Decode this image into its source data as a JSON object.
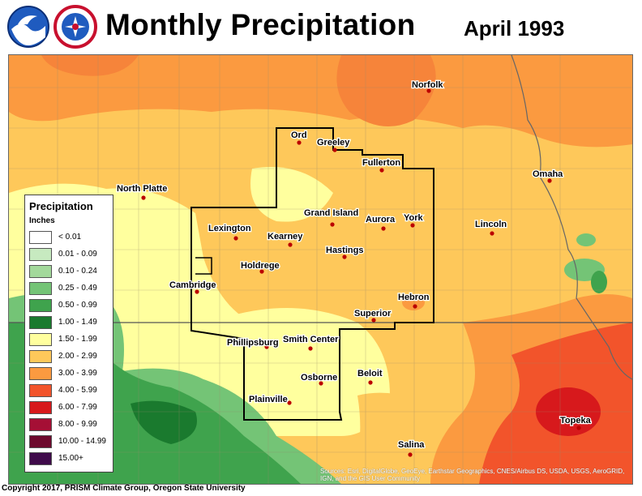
{
  "title": "Monthly Precipitation",
  "period": "April 1993",
  "legend": {
    "title": "Precipitation",
    "units": "Inches",
    "classes": [
      {
        "label": "< 0.01",
        "color": "#ffffff"
      },
      {
        "label": "0.01 - 0.09",
        "color": "#c7eac0"
      },
      {
        "label": "0.10 - 0.24",
        "color": "#a3d99b"
      },
      {
        "label": "0.25 - 0.49",
        "color": "#74c476"
      },
      {
        "label": "0.50 - 0.99",
        "color": "#3fa34d"
      },
      {
        "label": "1.00 - 1.49",
        "color": "#1a7a2e"
      },
      {
        "label": "1.50 - 1.99",
        "color": "#ffff9e"
      },
      {
        "label": "2.00 - 2.99",
        "color": "#fec85a"
      },
      {
        "label": "3.00 - 3.99",
        "color": "#fb9a40"
      },
      {
        "label": "4.00 - 5.99",
        "color": "#f2542b"
      },
      {
        "label": "6.00 - 7.99",
        "color": "#d7191c"
      },
      {
        "label": "8.00 - 9.99",
        "color": "#a50f35"
      },
      {
        "label": "10.00 - 14.99",
        "color": "#6e0a2e"
      },
      {
        "label": "15.00+",
        "color": "#3f0a4a"
      }
    ]
  },
  "cities": [
    "Ord",
    "Greeley",
    "Norfolk",
    "Fullerton",
    "North Platte",
    "Omaha",
    "Grand Island",
    "Aurora",
    "York",
    "Lincoln",
    "Lexington",
    "Kearney",
    "Hastings",
    "Holdrege",
    "Cambridge",
    "Hebron",
    "Superior",
    "Phillipsburg",
    "Smith Center",
    "Osborne",
    "Beloit",
    "Plainville",
    "Topeka",
    "Salina"
  ],
  "copyright": "Copyright 2017, PRISM Climate Group, Oregon State University",
  "sources": "Sources: Esri, DigitalGlobe, GeoEye, Earthstar Geographics, CNES/Airbus DS, USDA, USGS, AeroGRID, IGN, and the GIS User Community",
  "logos": [
    "noaa-logo",
    "national-weather-service-logo"
  ]
}
